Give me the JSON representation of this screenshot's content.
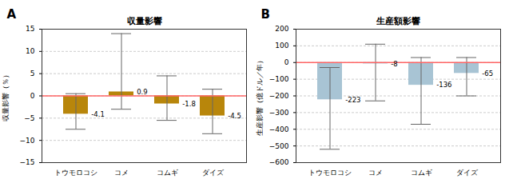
{
  "chart_data": [
    {
      "type": "bar",
      "title": "収量影響",
      "ylabel": "収量影響（％）",
      "categories": [
        "トウモロコシ",
        "コメ",
        "コムギ",
        "ダイズ"
      ],
      "values": [
        -4.1,
        0.9,
        -1.8,
        -4.5
      ],
      "error_low": [
        -7.5,
        -3.0,
        -5.5,
        -8.5
      ],
      "error_high": [
        0.5,
        14.0,
        4.5,
        1.5
      ],
      "color": "#B8860B",
      "ylim": [
        -15,
        15
      ],
      "yticks": [
        -15,
        -10,
        -5,
        0,
        5,
        10,
        15
      ],
      "grid": true,
      "data_labels": true,
      "annotations": [
        "A"
      ]
    },
    {
      "type": "bar",
      "title": "生産額影響",
      "ylabel": "生産影響（億ドル／年）",
      "categories": [
        "トウモロコシ",
        "コメ",
        "コムギ",
        "ダイズ"
      ],
      "values": [
        -223,
        -8,
        -136,
        -65
      ],
      "error_low": [
        -520,
        -230,
        -370,
        -200
      ],
      "error_high": [
        -30,
        110,
        30,
        30
      ],
      "color": "#A8C4D4",
      "ylim": [
        -600,
        200
      ],
      "yticks": [
        -600,
        -500,
        -400,
        -300,
        -200,
        -100,
        0,
        100,
        200
      ],
      "grid": true,
      "data_labels": true,
      "annotations": [
        "B"
      ]
    }
  ]
}
